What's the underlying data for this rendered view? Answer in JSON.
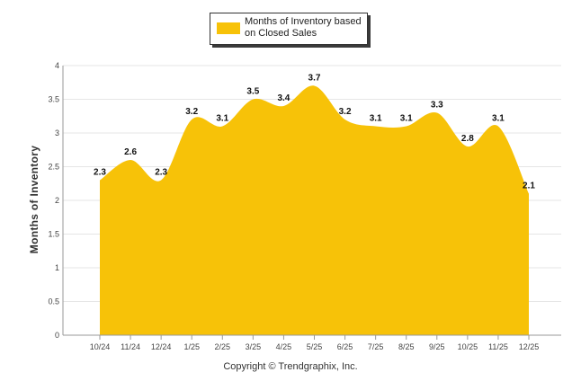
{
  "colors": {
    "area": "#f7c208",
    "grid": "#e6e6e6",
    "axis": "#999999"
  },
  "chart_data": {
    "type": "area",
    "title": "",
    "xlabel": "",
    "ylabel": "Months of Inventory",
    "ylim": [
      0,
      4
    ],
    "yticks": [
      0,
      0.5,
      1,
      1.5,
      2,
      2.5,
      3,
      3.5,
      4
    ],
    "grid": true,
    "legend_position": "top-center",
    "categories": [
      "10/24",
      "11/24",
      "12/24",
      "1/25",
      "2/25",
      "3/25",
      "4/25",
      "5/25",
      "6/25",
      "7/25",
      "8/25",
      "9/25",
      "10/25",
      "11/25",
      "12/25"
    ],
    "series": [
      {
        "name": "Months of Inventory based on Closed Sales",
        "values": [
          2.3,
          2.6,
          2.3,
          3.2,
          3.1,
          3.5,
          3.4,
          3.7,
          3.2,
          3.1,
          3.1,
          3.3,
          2.8,
          3.1,
          2.1
        ],
        "labels": [
          "2.3",
          "2.6",
          "2.3",
          "3.2",
          "3.1",
          "3.5",
          "3.4",
          "3.7",
          "3.2",
          "3.1",
          "3.1",
          "3.3",
          "2.8",
          "3.1",
          "2.1"
        ]
      }
    ]
  },
  "legend": {
    "label": "Months of Inventory based on Closed Sales"
  },
  "footer": {
    "copyright": "Copyright © Trendgraphix, Inc."
  }
}
